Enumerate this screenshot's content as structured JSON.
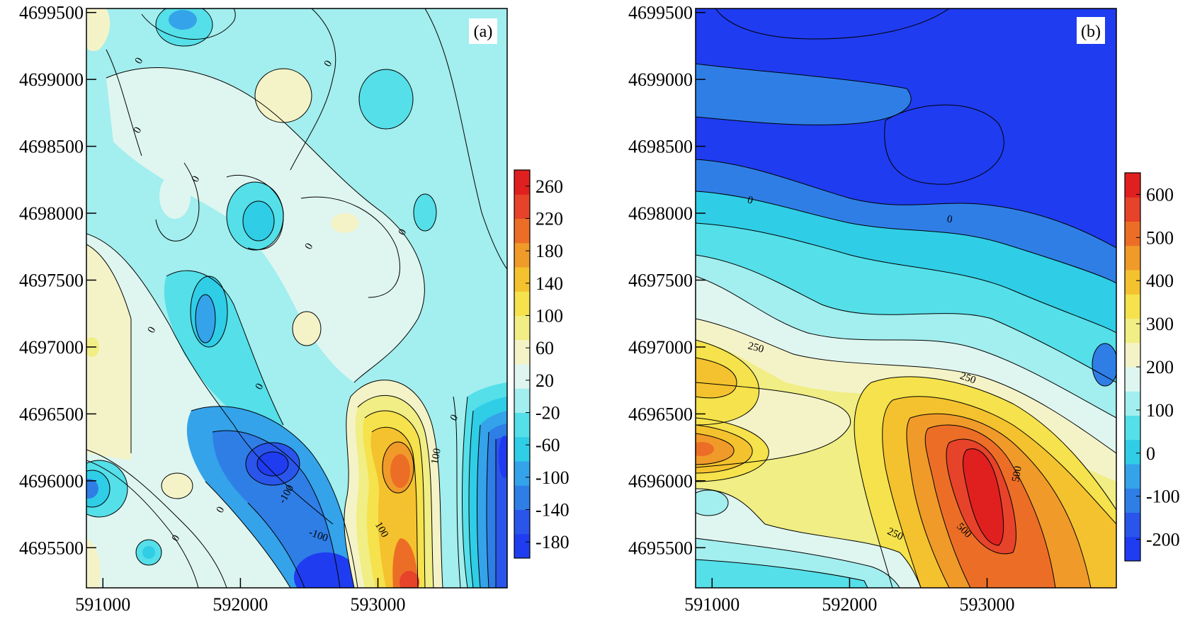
{
  "chart_data": [
    {
      "type": "heatmap",
      "panel_label": "(a)",
      "x_ticks": [
        591000,
        592000,
        593000
      ],
      "y_ticks": [
        4695500,
        4696000,
        4696500,
        4697000,
        4697500,
        4698000,
        4698500,
        4699000,
        4699500
      ],
      "xlim": [
        590880,
        593940
      ],
      "ylim": [
        4695200,
        4699530
      ],
      "colorbar": {
        "ticks": [
          260,
          220,
          180,
          140,
          100,
          60,
          20,
          -20,
          -60,
          -100,
          -140,
          -180
        ],
        "range": [
          -200,
          280
        ],
        "colors": [
          "#1f3cf0",
          "#2a55ea",
          "#2f7ee6",
          "#34a3ea",
          "#2fcde6",
          "#55dfe9",
          "#a3eeee",
          "#dff6f0",
          "#f4f3c8",
          "#f0ee84",
          "#f5e24c",
          "#f4c22e",
          "#f09a2a",
          "#ec6e26",
          "#e6432a",
          "#e01f1f"
        ]
      },
      "contour_labels": [
        "0",
        "0",
        "0",
        "0",
        "0",
        "0",
        "0",
        "0",
        "0",
        "0",
        "0",
        "100",
        "100",
        "-100",
        "-100"
      ]
    },
    {
      "type": "heatmap",
      "panel_label": "(b)",
      "x_ticks": [
        591000,
        592000,
        593000
      ],
      "y_ticks": [
        4695500,
        4696000,
        4696500,
        4697000,
        4697500,
        4698000,
        4698500,
        4699000,
        4699500
      ],
      "xlim": [
        590880,
        593940
      ],
      "ylim": [
        4695200,
        4699530
      ],
      "colorbar": {
        "ticks": [
          600,
          500,
          400,
          300,
          200,
          100,
          0,
          -100,
          -200
        ],
        "range": [
          -250,
          650
        ],
        "colors": [
          "#1f3cf0",
          "#2a55ea",
          "#2f7ee6",
          "#34a3ea",
          "#2fcde6",
          "#55dfe9",
          "#a3eeee",
          "#dff6f0",
          "#f4f3c8",
          "#f0ee84",
          "#f5e24c",
          "#f4c22e",
          "#f09a2a",
          "#ec6e26",
          "#e6432a",
          "#e01f1f"
        ]
      },
      "contour_labels": [
        "0",
        "0",
        "250",
        "250",
        "250",
        "500",
        "500"
      ]
    }
  ]
}
